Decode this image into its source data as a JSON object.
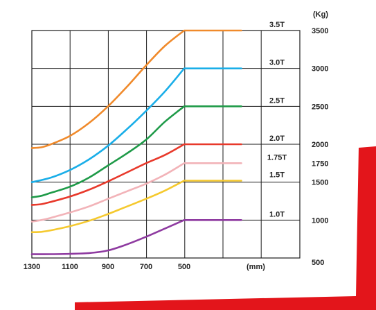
{
  "chart_data": {
    "type": "line",
    "x_reversed": true,
    "xlim": [
      1300,
      500
    ],
    "ylim": [
      500,
      3500
    ],
    "grid": true,
    "x_ticks": [
      1300,
      1100,
      900,
      700,
      500
    ],
    "x_tick_labels": [
      "1300",
      "1100",
      "900",
      "700",
      "500"
    ],
    "xunit": "(mm)",
    "y_ticks": [
      3500,
      3000,
      2500,
      2000,
      1750,
      1500,
      1000,
      500
    ],
    "y_tick_labels": [
      "3500",
      "3000",
      "2500",
      "2000",
      "1750",
      "1500",
      "1000",
      "500"
    ],
    "yunit": "(Kg)",
    "series": [
      {
        "name": "3.5T",
        "color": "#f08a2b",
        "x": [
          1300,
          1250,
          1200,
          1100,
          1000,
          900,
          800,
          700,
          600,
          500,
          200
        ],
        "y": [
          1950,
          1960,
          2000,
          2110,
          2280,
          2500,
          2760,
          3040,
          3300,
          3500,
          3500
        ]
      },
      {
        "name": "3.0T",
        "color": "#1aaee8",
        "x": [
          1300,
          1200,
          1100,
          1000,
          900,
          800,
          700,
          600,
          500,
          200
        ],
        "y": [
          1500,
          1560,
          1660,
          1800,
          1980,
          2200,
          2440,
          2700,
          3000,
          3000
        ]
      },
      {
        "name": "2.5T",
        "color": "#1e9a48",
        "x": [
          1300,
          1250,
          1200,
          1100,
          1000,
          900,
          800,
          700,
          600,
          500,
          200
        ],
        "y": [
          1300,
          1320,
          1360,
          1440,
          1560,
          1720,
          1880,
          2060,
          2300,
          2500,
          2500
        ]
      },
      {
        "name": "2.0T",
        "color": "#e8392b",
        "x": [
          1300,
          1250,
          1200,
          1100,
          1000,
          900,
          800,
          700,
          600,
          500,
          200
        ],
        "y": [
          1200,
          1210,
          1240,
          1310,
          1400,
          1510,
          1630,
          1750,
          1860,
          2000,
          2000
        ]
      },
      {
        "name": "1.75T",
        "color": "#f2b3b8",
        "x": [
          1300,
          1250,
          1200,
          1100,
          1000,
          900,
          800,
          700,
          600,
          500,
          200
        ],
        "y": [
          980,
          1000,
          1030,
          1100,
          1180,
          1280,
          1380,
          1480,
          1600,
          1750,
          1750
        ]
      },
      {
        "name": "1.5T",
        "color": "#f5c92e",
        "x": [
          1300,
          1250,
          1200,
          1100,
          1000,
          900,
          800,
          700,
          600,
          500,
          200
        ],
        "y": [
          840,
          845,
          865,
          920,
          990,
          1080,
          1180,
          1280,
          1390,
          1520,
          1520
        ]
      },
      {
        "name": "1.0T",
        "color": "#8e3aa0",
        "x": [
          1300,
          1200,
          1100,
          1000,
          900,
          800,
          700,
          600,
          500,
          200
        ],
        "y": [
          550,
          550,
          555,
          565,
          600,
          680,
          780,
          890,
          1000,
          1000
        ]
      }
    ]
  },
  "decoration": {
    "fork_color": "#e3151b"
  }
}
